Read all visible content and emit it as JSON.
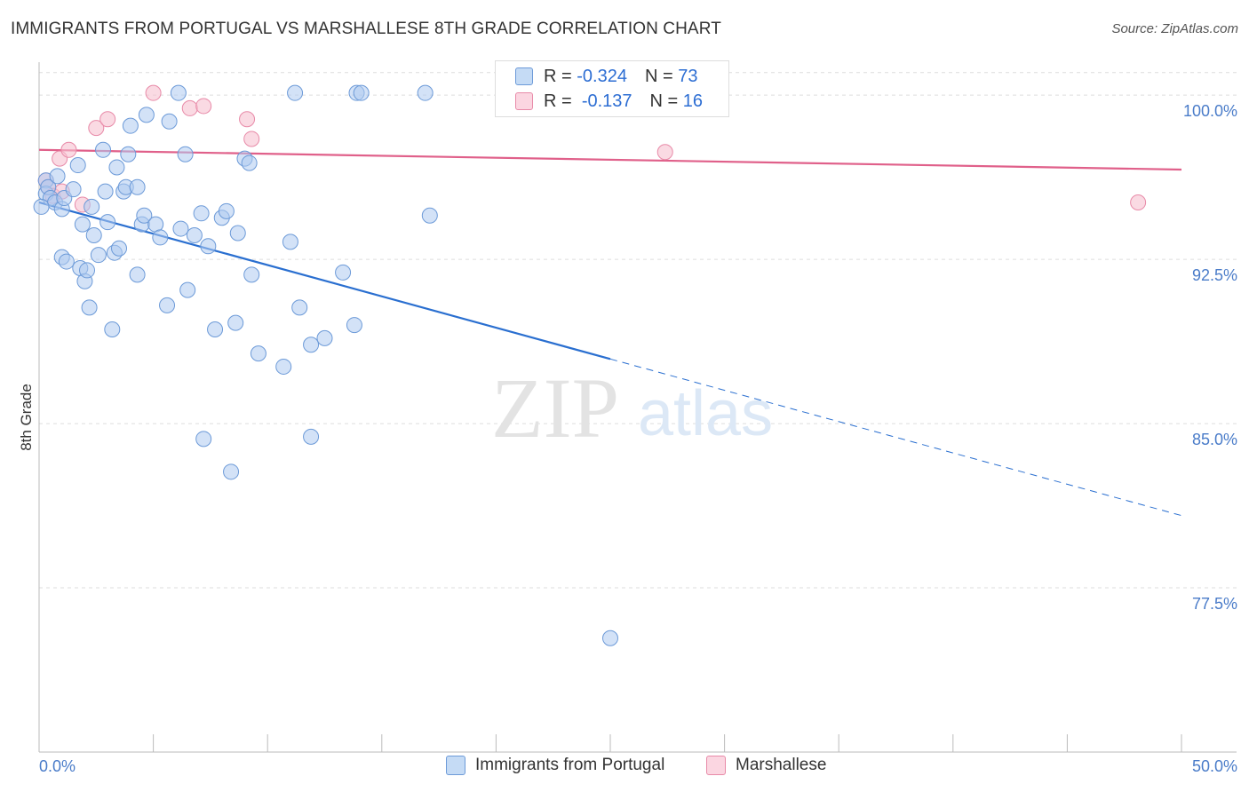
{
  "header": {
    "title": "IMMIGRANTS FROM PORTUGAL VS MARSHALLESE 8TH GRADE CORRELATION CHART",
    "source": "Source: ZipAtlas.com"
  },
  "watermark": {
    "zip": "ZIP",
    "atlas": "atlas"
  },
  "colors": {
    "blue_fill": "#aecbf0",
    "blue_stroke": "#6c9ad8",
    "blue_line": "#2a6fd0",
    "pink_fill": "#f7c1d1",
    "pink_stroke": "#e88aa8",
    "pink_line": "#e0608a",
    "tick_text": "#4a7cc9",
    "grid": "#dddddd"
  },
  "stats_legend": {
    "rows": [
      {
        "r_label": "R =",
        "r_value": "-0.324",
        "n_label": "N =",
        "n_value": "73",
        "color": "#aecbf0"
      },
      {
        "r_label": "R =",
        "r_value": "-0.137",
        "n_label": "N =",
        "n_value": "16",
        "color": "#f7c1d1"
      }
    ]
  },
  "chart_data": {
    "type": "scatter",
    "title": "IMMIGRANTS FROM PORTUGAL VS MARSHALLESE 8TH GRADE CORRELATION CHART",
    "xlabel": "",
    "ylabel": "8th Grade",
    "xlim": [
      0,
      50
    ],
    "ylim": [
      70.0,
      101.1
    ],
    "x_tick_labels": [
      {
        "value": 0,
        "label": "0.0%"
      },
      {
        "value": 50,
        "label": "50.0%"
      }
    ],
    "x_minor_ticks": [
      5,
      10,
      15,
      20,
      25,
      30,
      35,
      40,
      45
    ],
    "y_ticks": [
      {
        "value": 100.0,
        "label": "100.0%"
      },
      {
        "value": 92.5,
        "label": "92.5%"
      },
      {
        "value": 85.0,
        "label": "85.0%"
      },
      {
        "value": 77.5,
        "label": "77.5%"
      }
    ],
    "grid": true,
    "legend_position": "bottom",
    "series": [
      {
        "name": "Immigrants from Portugal",
        "color": "#aecbf0",
        "points": [
          [
            0.3,
            96.1
          ],
          [
            0.3,
            95.5
          ],
          [
            0.4,
            95.8
          ],
          [
            0.5,
            95.3
          ],
          [
            0.7,
            95.1
          ],
          [
            0.8,
            96.3
          ],
          [
            1.0,
            94.8
          ],
          [
            1.1,
            95.3
          ],
          [
            1.0,
            92.6
          ],
          [
            1.2,
            92.4
          ],
          [
            1.5,
            95.7
          ],
          [
            1.7,
            96.8
          ],
          [
            1.8,
            92.1
          ],
          [
            1.9,
            94.1
          ],
          [
            2.0,
            91.5
          ],
          [
            2.1,
            92.0
          ],
          [
            2.2,
            90.3
          ],
          [
            2.3,
            94.9
          ],
          [
            2.4,
            93.6
          ],
          [
            2.6,
            92.7
          ],
          [
            2.8,
            97.5
          ],
          [
            2.9,
            95.6
          ],
          [
            3.0,
            94.2
          ],
          [
            3.2,
            89.3
          ],
          [
            3.3,
            92.8
          ],
          [
            3.4,
            96.7
          ],
          [
            3.5,
            93.0
          ],
          [
            3.7,
            95.6
          ],
          [
            3.8,
            95.8
          ],
          [
            3.9,
            97.3
          ],
          [
            4.0,
            98.6
          ],
          [
            4.3,
            91.8
          ],
          [
            4.3,
            95.8
          ],
          [
            4.5,
            94.1
          ],
          [
            4.6,
            94.5
          ],
          [
            4.7,
            99.1
          ],
          [
            5.1,
            94.1
          ],
          [
            5.3,
            93.5
          ],
          [
            5.6,
            90.4
          ],
          [
            5.7,
            98.8
          ],
          [
            6.1,
            100.1
          ],
          [
            6.2,
            93.9
          ],
          [
            6.4,
            97.3
          ],
          [
            6.5,
            91.1
          ],
          [
            6.8,
            93.6
          ],
          [
            7.1,
            94.6
          ],
          [
            7.2,
            84.3
          ],
          [
            7.4,
            93.1
          ],
          [
            7.7,
            89.3
          ],
          [
            8.0,
            94.4
          ],
          [
            8.2,
            94.7
          ],
          [
            8.4,
            82.8
          ],
          [
            8.6,
            89.6
          ],
          [
            8.7,
            93.7
          ],
          [
            9.0,
            97.1
          ],
          [
            9.2,
            96.9
          ],
          [
            9.3,
            91.8
          ],
          [
            9.6,
            88.2
          ],
          [
            10.7,
            87.6
          ],
          [
            11.0,
            93.3
          ],
          [
            11.2,
            100.1
          ],
          [
            11.4,
            90.3
          ],
          [
            11.9,
            88.6
          ],
          [
            11.9,
            84.4
          ],
          [
            12.5,
            88.9
          ],
          [
            13.3,
            91.9
          ],
          [
            13.8,
            89.5
          ],
          [
            13.9,
            100.1
          ],
          [
            14.1,
            100.1
          ],
          [
            16.9,
            100.1
          ],
          [
            17.1,
            94.5
          ],
          [
            25.0,
            75.2
          ],
          [
            0.1,
            94.9
          ]
        ]
      },
      {
        "name": "Marshallese",
        "color": "#f7c1d1",
        "points": [
          [
            0.3,
            96.1
          ],
          [
            0.4,
            95.8
          ],
          [
            0.6,
            95.4
          ],
          [
            0.9,
            97.1
          ],
          [
            1.0,
            95.6
          ],
          [
            1.3,
            97.5
          ],
          [
            1.9,
            95.0
          ],
          [
            2.5,
            98.5
          ],
          [
            3.0,
            98.9
          ],
          [
            5.0,
            100.1
          ],
          [
            6.6,
            99.4
          ],
          [
            7.2,
            99.5
          ],
          [
            9.1,
            98.9
          ],
          [
            9.3,
            98.0
          ],
          [
            27.4,
            97.4
          ],
          [
            48.1,
            95.1
          ]
        ]
      }
    ],
    "trend_lines": [
      {
        "series": "Immigrants from Portugal",
        "x_start": 0,
        "y_start": 95.1,
        "x_solid_end": 25.0,
        "x_end": 50,
        "y_end": 80.8,
        "color": "#2a6fd0"
      },
      {
        "series": "Marshallese",
        "x_start": 0,
        "y_start": 97.5,
        "x_end": 50,
        "y_end": 96.6,
        "color": "#e0608a"
      }
    ]
  }
}
